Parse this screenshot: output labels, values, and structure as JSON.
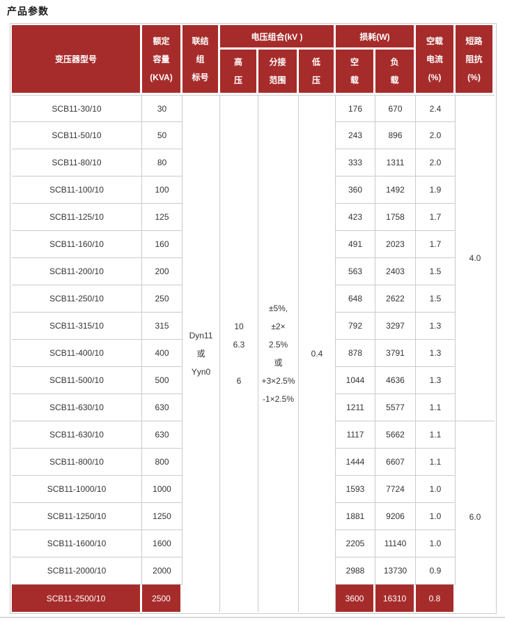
{
  "page_title": "产品参数",
  "colors": {
    "header_bg": "#A62C2B",
    "highlight_bg": "#A62C2B",
    "header_text": "#FFFFFF",
    "border": "#CBCBCB",
    "body_text": "#333333"
  },
  "table": {
    "header": {
      "model": "变压器型号",
      "capacity_lines": [
        "额定",
        "容量",
        "(KVA)"
      ],
      "connection_lines": [
        "联结",
        "组",
        "标号"
      ],
      "voltage_group": "电压组合(kV )",
      "hv_lines": [
        "高",
        "压"
      ],
      "tap_lines": [
        "分接",
        "范围"
      ],
      "lv_lines": [
        "低",
        "压"
      ],
      "loss_group": "损耗(W)",
      "no_load_lines": [
        "空",
        "载"
      ],
      "load_lines": [
        "负",
        "载"
      ],
      "no_load_current_lines": [
        "空载",
        "电流",
        "(%)"
      ],
      "impedance_lines": [
        "短路",
        "阻抗",
        "(%)"
      ]
    },
    "shared": {
      "connection_lines": [
        "Dyn11",
        "或",
        "Yyn0"
      ],
      "hv_lines": [
        "10",
        "6.3",
        "",
        "6"
      ],
      "tap_lines": [
        "±5%,",
        "±2×",
        "2.5%",
        "或",
        "+3×2.5%",
        "-1×2.5%"
      ],
      "lv": "0.4"
    },
    "impedance_groups": [
      {
        "value": "4.0",
        "rows": 12
      },
      {
        "value": "6.0",
        "rows": 7
      }
    ],
    "rows": [
      {
        "model": "SCB11-30/10",
        "capacity": "30",
        "no_load": "176",
        "load": "670",
        "current": "2.4",
        "highlight": false
      },
      {
        "model": "SCB11-50/10",
        "capacity": "50",
        "no_load": "243",
        "load": "896",
        "current": "2.0",
        "highlight": false
      },
      {
        "model": "SCB11-80/10",
        "capacity": "80",
        "no_load": "333",
        "load": "1311",
        "current": "2.0",
        "highlight": false
      },
      {
        "model": "SCB11-100/10",
        "capacity": "100",
        "no_load": "360",
        "load": "1492",
        "current": "1.9",
        "highlight": false
      },
      {
        "model": "SCB11-125/10",
        "capacity": "125",
        "no_load": "423",
        "load": "1758",
        "current": "1.7",
        "highlight": false
      },
      {
        "model": "SCB11-160/10",
        "capacity": "160",
        "no_load": "491",
        "load": "2023",
        "current": "1.7",
        "highlight": false
      },
      {
        "model": "SCB11-200/10",
        "capacity": "200",
        "no_load": "563",
        "load": "2403",
        "current": "1.5",
        "highlight": false
      },
      {
        "model": "SCB11-250/10",
        "capacity": "250",
        "no_load": "648",
        "load": "2622",
        "current": "1.5",
        "highlight": false
      },
      {
        "model": "SCB11-315/10",
        "capacity": "315",
        "no_load": "792",
        "load": "3297",
        "current": "1.3",
        "highlight": false
      },
      {
        "model": "SCB11-400/10",
        "capacity": "400",
        "no_load": "878",
        "load": "3791",
        "current": "1.3",
        "highlight": false
      },
      {
        "model": "SCB11-500/10",
        "capacity": "500",
        "no_load": "1044",
        "load": "4636",
        "current": "1.3",
        "highlight": false
      },
      {
        "model": "SCB11-630/10",
        "capacity": "630",
        "no_load": "1211",
        "load": "5577",
        "current": "1.1",
        "highlight": false
      },
      {
        "model": "SCB11-630/10",
        "capacity": "630",
        "no_load": "1117",
        "load": "5662",
        "current": "1.1",
        "highlight": false
      },
      {
        "model": "SCB11-800/10",
        "capacity": "800",
        "no_load": "1444",
        "load": "6607",
        "current": "1.1",
        "highlight": false
      },
      {
        "model": "SCB11-1000/10",
        "capacity": "1000",
        "no_load": "1593",
        "load": "7724",
        "current": "1.0",
        "highlight": false
      },
      {
        "model": "SCB11-1250/10",
        "capacity": "1250",
        "no_load": "1881",
        "load": "9206",
        "current": "1.0",
        "highlight": false
      },
      {
        "model": "SCB11-1600/10",
        "capacity": "1600",
        "no_load": "2205",
        "load": "11140",
        "current": "1.0",
        "highlight": false
      },
      {
        "model": "SCB11-2000/10",
        "capacity": "2000",
        "no_load": "2988",
        "load": "13730",
        "current": "0.9",
        "highlight": false
      },
      {
        "model": "SCB11-2500/10",
        "capacity": "2500",
        "no_load": "3600",
        "load": "16310",
        "current": "0.8",
        "highlight": true
      }
    ]
  }
}
